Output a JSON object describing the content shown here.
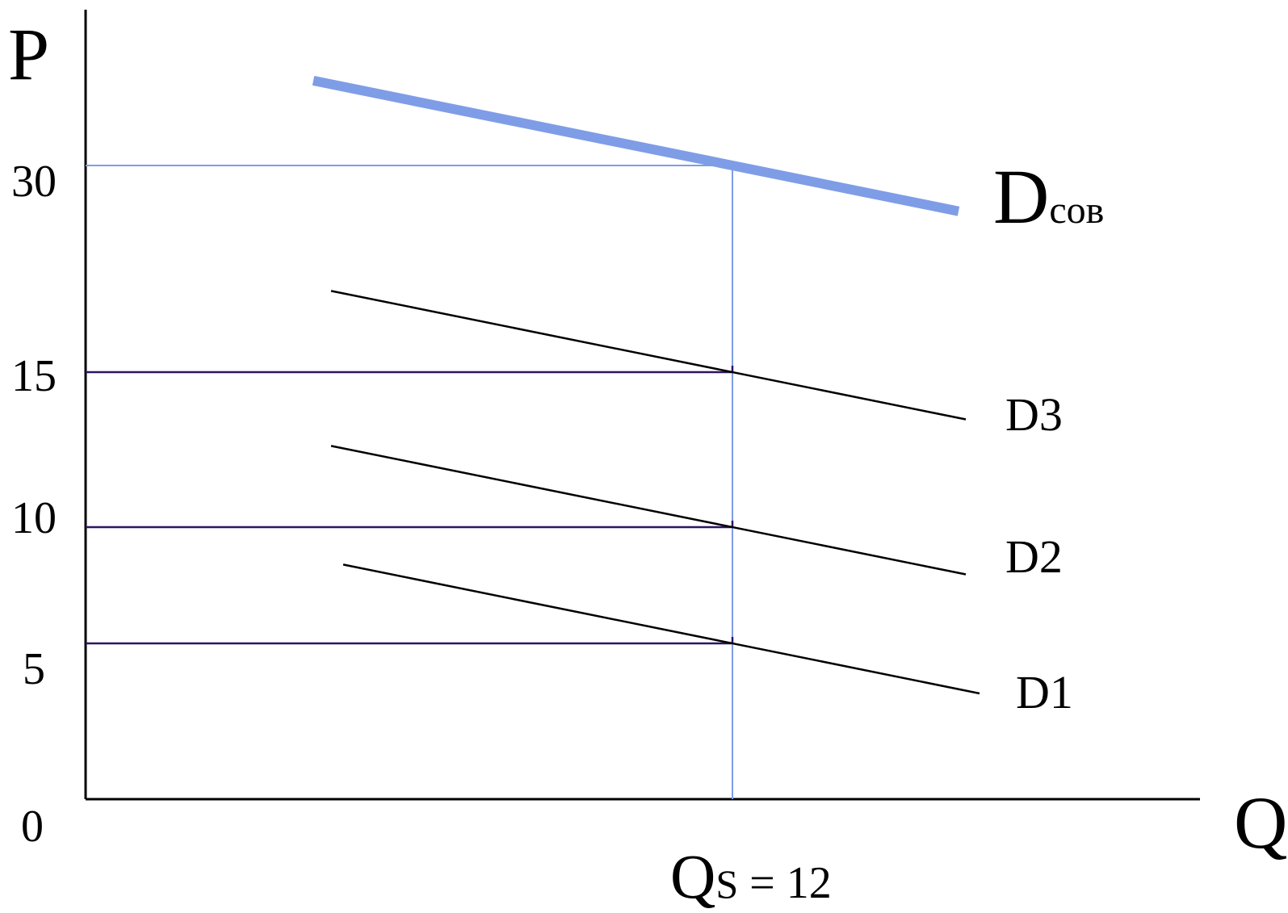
{
  "chart_data": {
    "type": "line",
    "title": "",
    "xlabel": "Q",
    "ylabel": "P",
    "y_ticks": [
      "30",
      "15",
      "10",
      "5"
    ],
    "origin_label": "0",
    "y_tick_values": [
      30,
      15,
      10,
      5
    ],
    "x_marker": {
      "prefix": "Q",
      "sub": "S",
      "suffix": " = 12",
      "value": 12
    },
    "series": [
      {
        "name": "D1",
        "label_main": "D1",
        "label_sub": "",
        "color": "#000000",
        "role": "individual-demand"
      },
      {
        "name": "D2",
        "label_main": "D2",
        "label_sub": "",
        "color": "#000000",
        "role": "individual-demand"
      },
      {
        "name": "D3",
        "label_main": "D3",
        "label_sub": "",
        "color": "#000000",
        "role": "individual-demand"
      },
      {
        "name": "Dсов",
        "label_main": "D",
        "label_sub": "сов",
        "color": "#7f9de6",
        "role": "total-demand"
      }
    ],
    "reference_values": [
      {
        "series": "D1",
        "x": 12,
        "y": 5
      },
      {
        "series": "D2",
        "x": 12,
        "y": 10
      },
      {
        "series": "D3",
        "x": 12,
        "y": 15
      },
      {
        "series": "Dсов",
        "x": 12,
        "y": 30
      }
    ],
    "colors": {
      "axis": "#000000",
      "total_demand": "#7f9de6",
      "guide_blue": "#7f9de6",
      "guide_purple": "#2e1560"
    }
  }
}
